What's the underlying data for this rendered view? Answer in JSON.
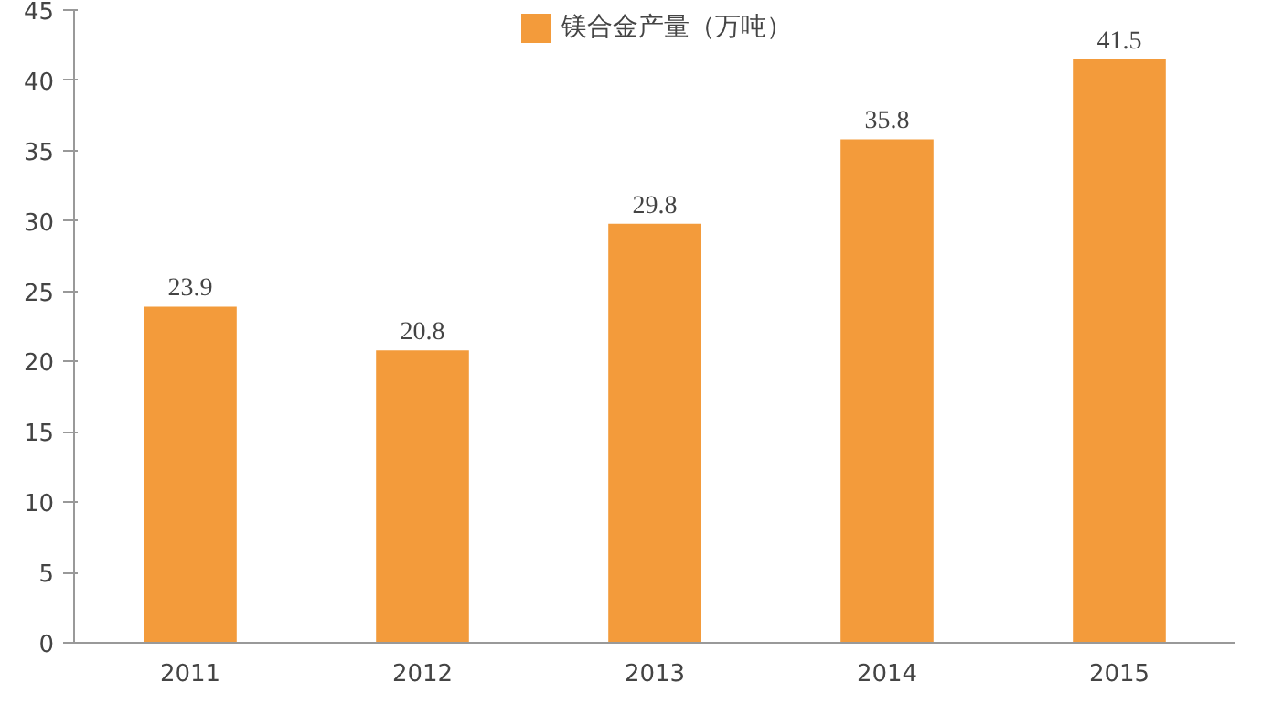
{
  "chart_data": {
    "type": "bar",
    "categories": [
      "2011",
      "2012",
      "2013",
      "2014",
      "2015"
    ],
    "series": [
      {
        "name": "镁合金产量（万吨）",
        "color": "#f39b3b",
        "values": [
          23.9,
          20.8,
          29.8,
          35.8,
          41.5
        ]
      }
    ],
    "ylim": [
      0,
      45
    ],
    "yticks": [
      0,
      5,
      10,
      15,
      20,
      25,
      30,
      35,
      40,
      45
    ],
    "grid": false,
    "legend": "top",
    "data_labels": true
  }
}
